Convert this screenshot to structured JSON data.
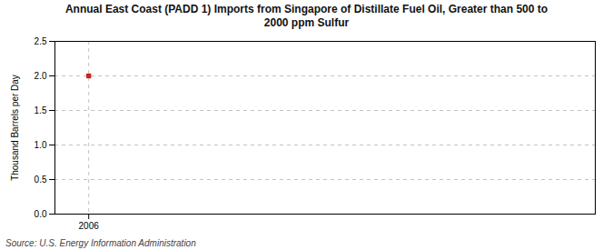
{
  "chart_data": {
    "type": "scatter",
    "title": "Annual East Coast (PADD 1) Imports from Singapore of Distillate Fuel Oil, Greater than 500 to\n2000 ppm Sulfur",
    "ylabel": "Thousand Barrels per Day",
    "source": "Source: U.S. Energy Information Administration",
    "x": [
      2006
    ],
    "values": [
      2.0
    ],
    "color": "#cc2222",
    "marker": "square",
    "xlim": [
      2005.5,
      2013.5
    ],
    "xticks": [
      2006
    ],
    "ylim": [
      0.0,
      2.5
    ],
    "yticks": [
      {
        "value": 0.0,
        "label": "0.0"
      },
      {
        "value": 0.5,
        "label": "0.5"
      },
      {
        "value": 1.0,
        "label": "1.0"
      },
      {
        "value": 1.5,
        "label": "1.5"
      },
      {
        "value": 2.0,
        "label": "2.0"
      },
      {
        "value": 2.5,
        "label": "2.5"
      }
    ],
    "grid": true
  }
}
